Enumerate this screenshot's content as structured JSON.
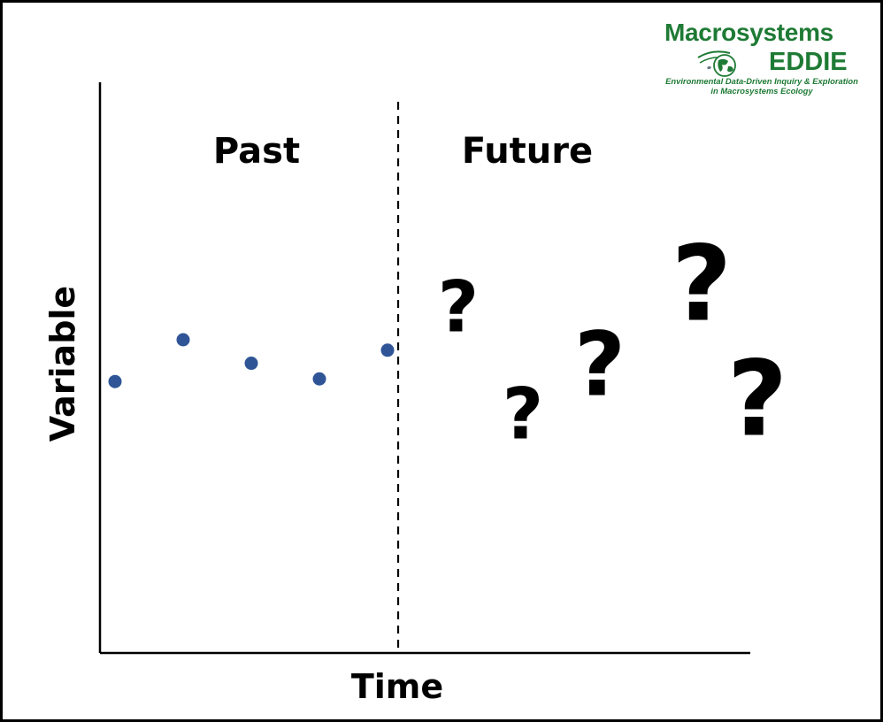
{
  "labels": {
    "past": "Past",
    "future": "Future",
    "x_axis": "Time",
    "y_axis": "Variable"
  },
  "logo": {
    "title": "Macrosystems",
    "subtitle": "EDDIE",
    "tagline_1": "Environmental Data-Driven Inquiry & Exploration",
    "tagline_2": "in Macrosystems Ecology",
    "color": "#1e7a34"
  },
  "observations": {
    "color": "#2f5597",
    "points": [
      {
        "t": 1,
        "v": 0.52
      },
      {
        "t": 2,
        "v": 0.6
      },
      {
        "t": 3,
        "v": 0.555
      },
      {
        "t": 4,
        "v": 0.525
      },
      {
        "t": 5,
        "v": 0.58
      }
    ]
  },
  "unknowns": {
    "glyph": "?",
    "marks": [
      {
        "t": 6,
        "v": 0.665
      },
      {
        "t": 7,
        "v": 0.46
      },
      {
        "t": 8,
        "v": 0.555
      },
      {
        "t": 9,
        "v": 0.71
      },
      {
        "t": 10,
        "v": 0.49
      }
    ]
  },
  "divider": {
    "t": 5,
    "style": "dashed"
  }
}
